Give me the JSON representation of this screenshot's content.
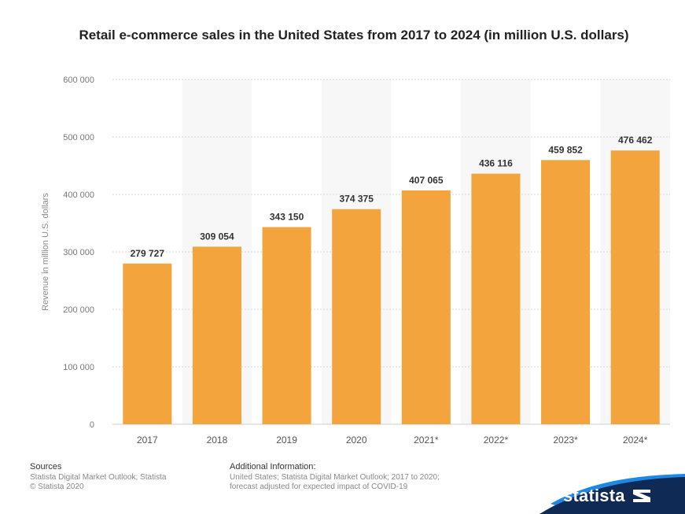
{
  "chart_data": {
    "type": "bar",
    "title": "Retail e-commerce sales in the United States from 2017 to 2024 (in million U.S. dollars)",
    "ylabel": "Revenue in million U.S. dollars",
    "xlabel": "",
    "categories": [
      "2017",
      "2018",
      "2019",
      "2020",
      "2021*",
      "2022*",
      "2023*",
      "2024*"
    ],
    "values": [
      279727,
      309054,
      343150,
      374375,
      407065,
      436116,
      459852,
      476462
    ],
    "value_labels": [
      "279 727",
      "309 054",
      "343 150",
      "374 375",
      "407 065",
      "436 116",
      "459 852",
      "476 462"
    ],
    "ylim": [
      0,
      600000
    ],
    "yticks": [
      0,
      100000,
      200000,
      300000,
      400000,
      500000,
      600000
    ],
    "ytick_labels": [
      "0",
      "100 000",
      "200 000",
      "300 000",
      "400 000",
      "500 000",
      "600 000"
    ],
    "grid": true,
    "bar_color": "#f4a43c",
    "alt_column_color": "#f7f7f7"
  },
  "footer": {
    "sources_heading": "Sources",
    "sources_line1": "Statista Digital Market Outlook; Statista",
    "sources_line2": "© Statista 2020",
    "info_heading": "Additional Information:",
    "info_line1": "United States; Statista Digital Market Outlook; 2017 to 2020;",
    "info_line2": "forecast adjusted for expected impact of COVID-19"
  },
  "brand": {
    "name": "statista",
    "logo_icon": "statista-logo-icon",
    "color": "#0e2a55"
  }
}
